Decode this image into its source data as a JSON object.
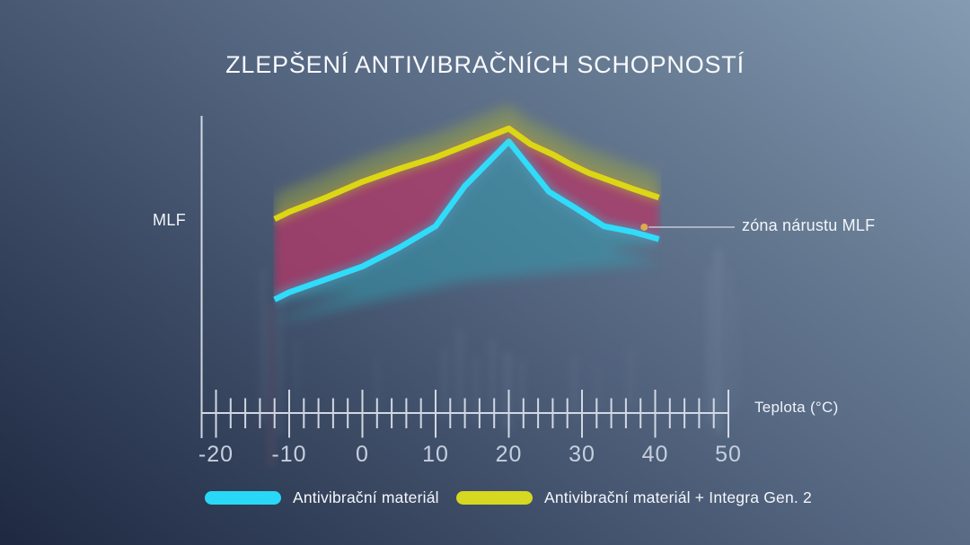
{
  "title": "ZLEPŠENÍ ANTIVIBRAČNÍCH SCHOPNOSTÍ",
  "chart": {
    "y_axis_label": "MLF",
    "x_axis_label": "Teplota (°C)",
    "annotation": "zóna nárustu MLF"
  },
  "legend": [
    {
      "label": "Antivibrační materiál",
      "color": "#29d8f6"
    },
    {
      "label": "Antivibrační materiál + Integra Gen. 2",
      "color": "#d6d821"
    }
  ],
  "chart_data": {
    "type": "line",
    "title": "ZLEPŠENÍ ANTIVIBRAČNÍCH SCHOPNOSTÍ",
    "xlabel": "Teplota (°C)",
    "ylabel": "MLF",
    "x_ticks": [
      -20,
      -10,
      0,
      10,
      20,
      30,
      40,
      50
    ],
    "x_minor_ticks_per_interval": 4,
    "xlim": [
      -22,
      50
    ],
    "y_axis": "unlabeled (no ticks); values below are estimated relative MLF, 0-100",
    "grid": false,
    "legend_position": "bottom",
    "series": [
      {
        "name": "Antivibrační materiál",
        "color": "#2fdcf9",
        "glow_color": "#2fa6b8",
        "points": [
          [
            -12,
            39.5
          ],
          [
            -10,
            42
          ],
          [
            -5,
            46.5
          ],
          [
            0,
            51
          ],
          [
            5,
            57.5
          ],
          [
            10,
            65
          ],
          [
            14,
            79
          ],
          [
            20,
            94.5
          ],
          [
            25.5,
            77
          ],
          [
            29,
            71.5
          ],
          [
            33,
            65
          ],
          [
            37,
            63
          ],
          [
            40.5,
            60.5
          ]
        ]
      },
      {
        "name": "Antivibrační materiál + Integra Gen. 2",
        "color": "#dcd714",
        "glow_color": "#a3aa3c",
        "points": [
          [
            -12,
            67.5
          ],
          [
            -10,
            70
          ],
          [
            -5,
            75
          ],
          [
            0,
            80.5
          ],
          [
            5,
            85
          ],
          [
            10,
            89
          ],
          [
            15,
            94
          ],
          [
            20,
            99
          ],
          [
            23,
            93.5
          ],
          [
            26,
            90
          ],
          [
            28.5,
            86.5
          ],
          [
            31,
            83.5
          ],
          [
            37,
            78
          ],
          [
            40.5,
            75
          ]
        ]
      }
    ],
    "zone": {
      "label": "zóna nárustu MLF",
      "color": "#b43767",
      "description": "filled area between the two curves",
      "callout_at": {
        "t": 38.5,
        "mlf": 64.7
      }
    },
    "peak_at_temperature": 20
  },
  "theme": {
    "axis_color": "#dde4ee",
    "tick_label_color": "#c5cfde",
    "text_color": "#f4f7fb",
    "annotation_dot_color": "#dcab4e",
    "background_top_right": "#849bb2",
    "background_bottom_left": "#1e2941"
  }
}
